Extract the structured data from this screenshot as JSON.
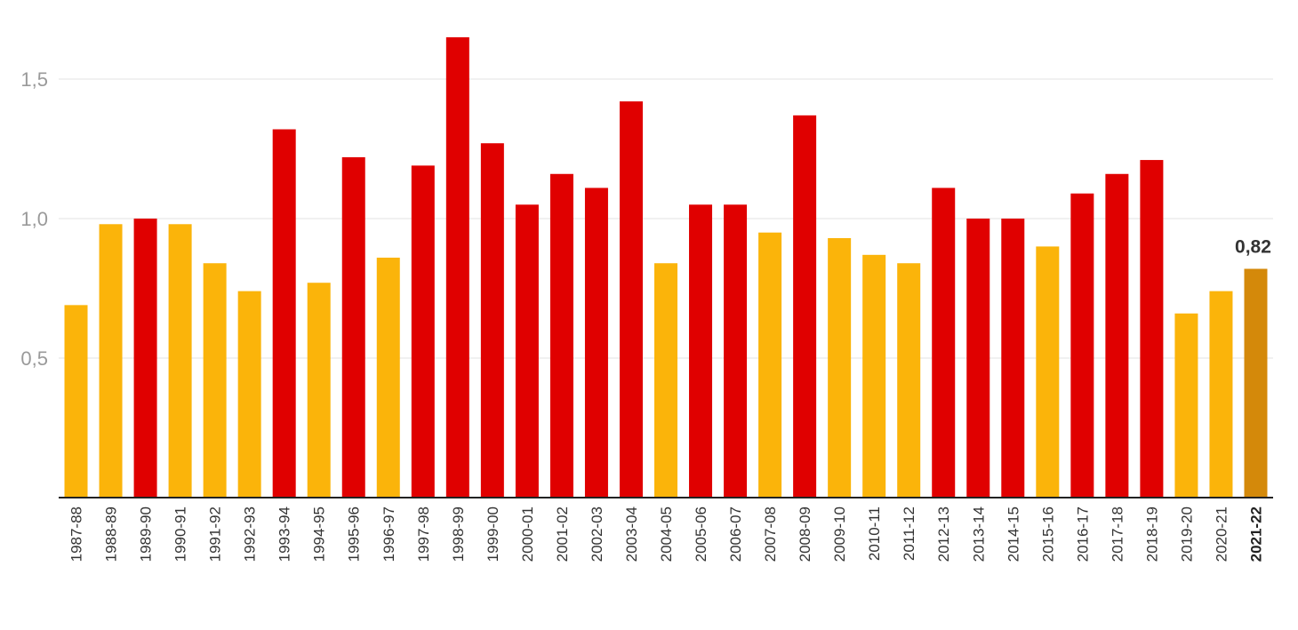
{
  "chart_data": {
    "type": "bar",
    "title": "",
    "xlabel": "",
    "ylabel": "",
    "ylim": [
      0,
      1.7
    ],
    "y_ticks": [
      0.5,
      1.0,
      1.5
    ],
    "y_tick_labels": [
      "0,5",
      "1,0",
      "1,5"
    ],
    "grid": true,
    "categories": [
      "1987-88",
      "1988-89",
      "1989-90",
      "1990-91",
      "1991-92",
      "1992-93",
      "1993-94",
      "1994-95",
      "1995-96",
      "1996-97",
      "1997-98",
      "1998-99",
      "1999-00",
      "2000-01",
      "2001-02",
      "2002-03",
      "2003-04",
      "2004-05",
      "2005-06",
      "2006-07",
      "2007-08",
      "2008-09",
      "2009-10",
      "2010-11",
      "2011-12",
      "2012-13",
      "2013-14",
      "2014-15",
      "2015-16",
      "2016-17",
      "2017-18",
      "2018-19",
      "2019-20",
      "2020-21",
      "2021-22"
    ],
    "values": [
      0.69,
      0.98,
      1.0,
      0.98,
      0.84,
      0.74,
      1.32,
      0.77,
      1.22,
      0.86,
      1.19,
      1.65,
      1.27,
      1.05,
      1.16,
      1.11,
      1.42,
      0.84,
      1.05,
      1.05,
      0.95,
      1.37,
      0.93,
      0.87,
      0.84,
      1.11,
      1.0,
      1.0,
      0.9,
      1.09,
      1.16,
      1.21,
      0.66,
      0.74,
      0.82
    ],
    "bar_colors": [
      "#fbb40a",
      "#fbb40a",
      "#e00000",
      "#fbb40a",
      "#fbb40a",
      "#fbb40a",
      "#e00000",
      "#fbb40a",
      "#e00000",
      "#fbb40a",
      "#e00000",
      "#e00000",
      "#e00000",
      "#e00000",
      "#e00000",
      "#e00000",
      "#e00000",
      "#fbb40a",
      "#e00000",
      "#e00000",
      "#fbb40a",
      "#e00000",
      "#fbb40a",
      "#fbb40a",
      "#fbb40a",
      "#e00000",
      "#e00000",
      "#e00000",
      "#fbb40a",
      "#e00000",
      "#e00000",
      "#e00000",
      "#fbb40a",
      "#fbb40a",
      "#d4890a"
    ],
    "highlight_index": 34,
    "highlight_label": "0,82"
  }
}
